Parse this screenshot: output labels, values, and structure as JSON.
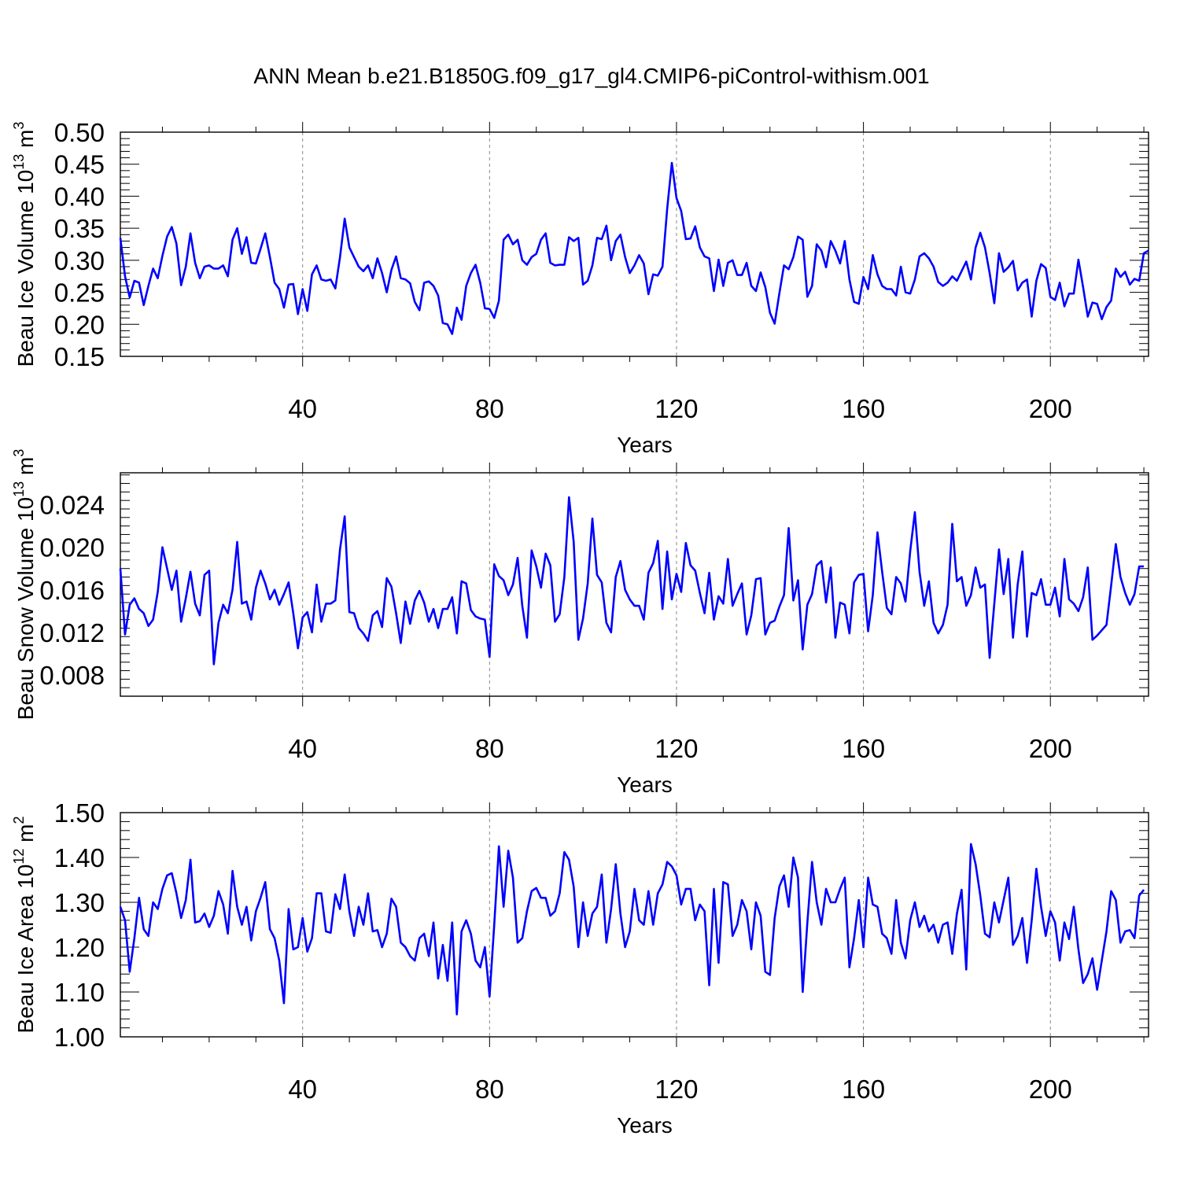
{
  "figure": {
    "title": "ANN Mean b.e21.B1850G.f09_g17_gl4.CMIP6-piControl-withism.001"
  },
  "chart_data": [
    {
      "type": "line",
      "xlabel": "Years",
      "ylabel_text": "Beau Ice Volume 10",
      "ylabel_exp": "13",
      "ylabel_unit": " m",
      "ylabel_unit_exp": "3",
      "xlim": [
        1,
        221
      ],
      "ylim": [
        0.15,
        0.5
      ],
      "xticks": [
        40,
        80,
        120,
        160,
        200
      ],
      "xtick_labels": [
        "40",
        "80",
        "120",
        "160",
        "200"
      ],
      "yticks": [
        0.15,
        0.2,
        0.25,
        0.3,
        0.35,
        0.4,
        0.45,
        0.5
      ],
      "ytick_labels": [
        "0.15",
        "0.20",
        "0.25",
        "0.30",
        "0.35",
        "0.40",
        "0.45",
        "0.50"
      ],
      "grid": "vertical dashed at labeled x ticks",
      "line_color": "#0000ff",
      "x_start": 1,
      "series": [
        {
          "values": [
            0.335,
            0.275,
            0.242,
            0.268,
            0.265,
            0.23,
            0.26,
            0.287,
            0.272,
            0.307,
            0.337,
            0.352,
            0.326,
            0.261,
            0.29,
            0.342,
            0.296,
            0.272,
            0.29,
            0.292,
            0.287,
            0.287,
            0.292,
            0.275,
            0.332,
            0.35,
            0.31,
            0.336,
            0.296,
            0.295,
            0.318,
            0.342,
            0.305,
            0.265,
            0.255,
            0.226,
            0.262,
            0.263,
            0.216,
            0.255,
            0.221,
            0.278,
            0.292,
            0.27,
            0.268,
            0.27,
            0.256,
            0.305,
            0.365,
            0.32,
            0.305,
            0.29,
            0.283,
            0.292,
            0.272,
            0.303,
            0.28,
            0.25,
            0.285,
            0.306,
            0.272,
            0.27,
            0.264,
            0.235,
            0.222,
            0.265,
            0.267,
            0.26,
            0.245,
            0.202,
            0.2,
            0.185,
            0.226,
            0.207,
            0.26,
            0.28,
            0.293,
            0.265,
            0.225,
            0.224,
            0.21,
            0.237,
            0.332,
            0.34,
            0.325,
            0.332,
            0.3,
            0.293,
            0.305,
            0.31,
            0.332,
            0.342,
            0.296,
            0.292,
            0.293,
            0.293,
            0.336,
            0.33,
            0.335,
            0.262,
            0.268,
            0.292,
            0.335,
            0.333,
            0.354,
            0.3,
            0.33,
            0.34,
            0.305,
            0.28,
            0.292,
            0.308,
            0.295,
            0.247,
            0.278,
            0.276,
            0.29,
            0.38,
            0.452,
            0.397,
            0.377,
            0.333,
            0.334,
            0.353,
            0.32,
            0.306,
            0.303,
            0.252,
            0.301,
            0.26,
            0.296,
            0.3,
            0.277,
            0.277,
            0.296,
            0.26,
            0.252,
            0.281,
            0.258,
            0.218,
            0.201,
            0.248,
            0.292,
            0.286,
            0.305,
            0.337,
            0.332,
            0.243,
            0.26,
            0.325,
            0.315,
            0.289,
            0.33,
            0.315,
            0.295,
            0.33,
            0.27,
            0.235,
            0.232,
            0.274,
            0.255,
            0.308,
            0.278,
            0.26,
            0.255,
            0.255,
            0.245,
            0.29,
            0.25,
            0.248,
            0.27,
            0.306,
            0.311,
            0.303,
            0.29,
            0.266,
            0.26,
            0.265,
            0.275,
            0.268,
            0.283,
            0.298,
            0.27,
            0.32,
            0.343,
            0.32,
            0.28,
            0.233,
            0.311,
            0.282,
            0.289,
            0.299,
            0.253,
            0.265,
            0.27,
            0.212,
            0.268,
            0.294,
            0.288,
            0.243,
            0.238,
            0.265,
            0.228,
            0.248,
            0.248,
            0.301,
            0.258,
            0.212,
            0.234,
            0.232,
            0.208,
            0.227,
            0.237,
            0.287,
            0.274,
            0.282,
            0.262,
            0.271,
            0.268,
            0.311,
            0.315
          ]
        }
      ]
    },
    {
      "type": "line",
      "xlabel": "Years",
      "ylabel_text": "Beau Snow Volume 10",
      "ylabel_exp": "13",
      "ylabel_unit": " m",
      "ylabel_unit_exp": "3",
      "xlim": [
        1,
        221
      ],
      "ylim": [
        0.006,
        0.027
      ],
      "xticks": [
        40,
        80,
        120,
        160,
        200
      ],
      "xtick_labels": [
        "40",
        "80",
        "120",
        "160",
        "200"
      ],
      "yticks": [
        0.008,
        0.012,
        0.016,
        0.02,
        0.024
      ],
      "ytick_labels": [
        "0.008",
        "0.012",
        "0.016",
        "0.020",
        "0.024"
      ],
      "grid": "vertical dashed at labeled x ticks",
      "line_color": "#0000ff",
      "x_start": 1,
      "series": [
        {
          "values": [
            0.018,
            0.0118,
            0.0146,
            0.0152,
            0.0142,
            0.0138,
            0.0126,
            0.0132,
            0.0158,
            0.02,
            0.018,
            0.016,
            0.0178,
            0.013,
            0.0152,
            0.0177,
            0.0147,
            0.0136,
            0.0174,
            0.0178,
            0.009,
            0.0129,
            0.0146,
            0.0138,
            0.016,
            0.0205,
            0.0147,
            0.0149,
            0.0132,
            0.0162,
            0.0178,
            0.0166,
            0.0151,
            0.016,
            0.0146,
            0.0156,
            0.0167,
            0.0138,
            0.0105,
            0.0134,
            0.0139,
            0.012,
            0.0165,
            0.013,
            0.0147,
            0.0147,
            0.015,
            0.0198,
            0.0229,
            0.0139,
            0.0138,
            0.0124,
            0.0119,
            0.0112,
            0.0136,
            0.014,
            0.0125,
            0.0171,
            0.0163,
            0.0138,
            0.011,
            0.0149,
            0.0128,
            0.015,
            0.0159,
            0.0148,
            0.013,
            0.0142,
            0.0124,
            0.0142,
            0.0142,
            0.0153,
            0.0119,
            0.0168,
            0.0166,
            0.0141,
            0.0135,
            0.0133,
            0.0132,
            0.0097,
            0.0184,
            0.0173,
            0.0169,
            0.0155,
            0.0165,
            0.019,
            0.0145,
            0.0115,
            0.0197,
            0.0182,
            0.0162,
            0.0194,
            0.0183,
            0.013,
            0.0137,
            0.0172,
            0.0247,
            0.0205,
            0.0113,
            0.0133,
            0.0166,
            0.0227,
            0.0174,
            0.0167,
            0.0129,
            0.012,
            0.0172,
            0.0187,
            0.016,
            0.0151,
            0.0145,
            0.0145,
            0.0132,
            0.0176,
            0.0185,
            0.0206,
            0.0142,
            0.0196,
            0.0151,
            0.0175,
            0.0158,
            0.0204,
            0.0183,
            0.0178,
            0.0157,
            0.0138,
            0.0176,
            0.0132,
            0.0154,
            0.0147,
            0.0189,
            0.0145,
            0.0156,
            0.0166,
            0.0118,
            0.0136,
            0.017,
            0.0171,
            0.0118,
            0.0129,
            0.0131,
            0.0144,
            0.0155,
            0.0218,
            0.015,
            0.0169,
            0.0104,
            0.0146,
            0.0156,
            0.0183,
            0.0187,
            0.0148,
            0.0181,
            0.0115,
            0.0148,
            0.0146,
            0.0119,
            0.0167,
            0.0174,
            0.0175,
            0.0121,
            0.0155,
            0.0214,
            0.0177,
            0.0143,
            0.0137,
            0.0172,
            0.0166,
            0.0149,
            0.0196,
            0.0233,
            0.0177,
            0.0145,
            0.0168,
            0.0129,
            0.0119,
            0.0127,
            0.0146,
            0.0222,
            0.0168,
            0.0172,
            0.0145,
            0.0155,
            0.0181,
            0.0162,
            0.0165,
            0.0096,
            0.0147,
            0.0198,
            0.0156,
            0.0189,
            0.0115,
            0.0165,
            0.0196,
            0.0116,
            0.0157,
            0.0155,
            0.017,
            0.0146,
            0.0146,
            0.0162,
            0.0135,
            0.0189,
            0.0151,
            0.0147,
            0.014,
            0.0153,
            0.0181,
            0.0113,
            0.0117,
            0.0122,
            0.0127,
            0.0164,
            0.0203,
            0.0172,
            0.0157,
            0.0146,
            0.0156,
            0.0182,
            0.0182
          ]
        }
      ]
    },
    {
      "type": "line",
      "xlabel": "Years",
      "ylabel_text": "Beau Ice Area 10",
      "ylabel_exp": "12",
      "ylabel_unit": " m",
      "ylabel_unit_exp": "2",
      "xlim": [
        1,
        221
      ],
      "ylim": [
        1.0,
        1.5
      ],
      "xticks": [
        40,
        80,
        120,
        160,
        200
      ],
      "xtick_labels": [
        "40",
        "80",
        "120",
        "160",
        "200"
      ],
      "yticks": [
        1.0,
        1.1,
        1.2,
        1.3,
        1.4,
        1.5
      ],
      "ytick_labels": [
        "1.00",
        "1.10",
        "1.20",
        "1.30",
        "1.40",
        "1.50"
      ],
      "grid": "vertical dashed at labeled x ticks",
      "line_color": "#0000ff",
      "x_start": 1,
      "series": [
        {
          "values": [
            1.29,
            1.26,
            1.145,
            1.22,
            1.31,
            1.24,
            1.225,
            1.3,
            1.285,
            1.33,
            1.36,
            1.365,
            1.32,
            1.265,
            1.305,
            1.395,
            1.255,
            1.258,
            1.275,
            1.245,
            1.27,
            1.325,
            1.295,
            1.23,
            1.37,
            1.29,
            1.25,
            1.29,
            1.215,
            1.28,
            1.31,
            1.345,
            1.24,
            1.22,
            1.17,
            1.075,
            1.285,
            1.195,
            1.2,
            1.265,
            1.19,
            1.22,
            1.32,
            1.32,
            1.235,
            1.232,
            1.318,
            1.285,
            1.362,
            1.28,
            1.225,
            1.29,
            1.25,
            1.32,
            1.235,
            1.238,
            1.2,
            1.23,
            1.308,
            1.29,
            1.21,
            1.2,
            1.18,
            1.17,
            1.22,
            1.23,
            1.18,
            1.255,
            1.13,
            1.205,
            1.125,
            1.255,
            1.05,
            1.235,
            1.26,
            1.23,
            1.17,
            1.155,
            1.2,
            1.09,
            1.25,
            1.425,
            1.29,
            1.415,
            1.355,
            1.21,
            1.22,
            1.28,
            1.325,
            1.332,
            1.31,
            1.31,
            1.27,
            1.28,
            1.32,
            1.412,
            1.395,
            1.335,
            1.2,
            1.3,
            1.225,
            1.275,
            1.29,
            1.362,
            1.21,
            1.285,
            1.385,
            1.275,
            1.2,
            1.235,
            1.33,
            1.26,
            1.25,
            1.325,
            1.25,
            1.32,
            1.34,
            1.39,
            1.38,
            1.36,
            1.295,
            1.33,
            1.33,
            1.26,
            1.295,
            1.28,
            1.115,
            1.33,
            1.165,
            1.345,
            1.34,
            1.225,
            1.25,
            1.305,
            1.28,
            1.195,
            1.3,
            1.27,
            1.145,
            1.138,
            1.265,
            1.335,
            1.36,
            1.29,
            1.4,
            1.355,
            1.1,
            1.255,
            1.39,
            1.3,
            1.25,
            1.33,
            1.3,
            1.3,
            1.33,
            1.355,
            1.155,
            1.22,
            1.305,
            1.2,
            1.355,
            1.295,
            1.29,
            1.23,
            1.22,
            1.185,
            1.305,
            1.21,
            1.175,
            1.26,
            1.3,
            1.245,
            1.27,
            1.235,
            1.25,
            1.21,
            1.25,
            1.255,
            1.185,
            1.275,
            1.328,
            1.15,
            1.43,
            1.385,
            1.315,
            1.23,
            1.222,
            1.3,
            1.255,
            1.305,
            1.355,
            1.205,
            1.225,
            1.265,
            1.165,
            1.26,
            1.375,
            1.29,
            1.225,
            1.28,
            1.255,
            1.17,
            1.255,
            1.218,
            1.29,
            1.195,
            1.12,
            1.14,
            1.175,
            1.105,
            1.17,
            1.235,
            1.325,
            1.305,
            1.21,
            1.235,
            1.238,
            1.22,
            1.315,
            1.328
          ]
        }
      ]
    }
  ]
}
